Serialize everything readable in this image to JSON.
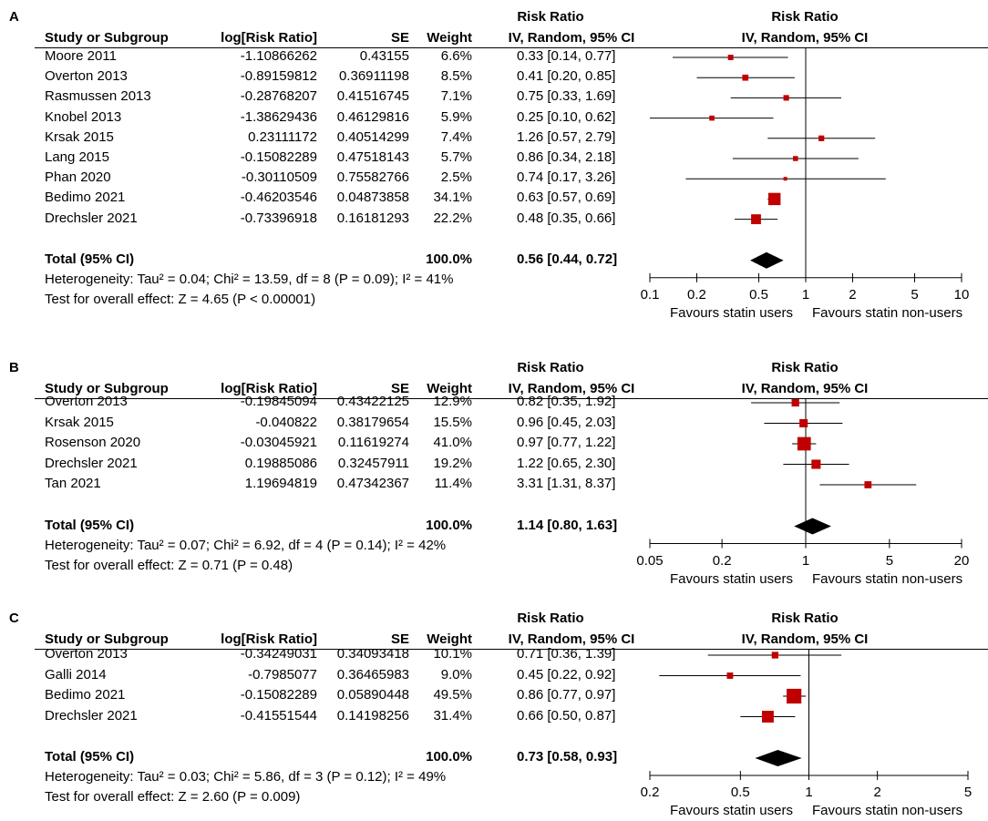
{
  "headers": {
    "study": "Study or Subgroup",
    "logrr": "log[Risk Ratio]",
    "se": "SE",
    "weight": "Weight",
    "rr_title": "Risk Ratio",
    "rr_method": "IV, Random, 95% CI",
    "plot_title": "Risk Ratio",
    "plot_method": "IV, Random, 95% CI"
  },
  "chart_data": [
    {
      "panel_label": "A",
      "type": "forest",
      "scale": "log",
      "x_ticks": [
        0.1,
        0.2,
        0.5,
        1,
        2,
        5,
        10
      ],
      "x_tick_labels": [
        "0.1",
        "0.2",
        "0.5",
        "1",
        "2",
        "5",
        "10"
      ],
      "xlim": [
        0.1,
        10
      ],
      "favours_left": "Favours statin users",
      "favours_right": "Favours statin non-users",
      "studies": [
        {
          "name": "Moore 2011",
          "logrr": "-1.10866262",
          "se": "0.43155",
          "weight": "6.6%",
          "rr_text": "0.33 [0.14, 0.77]",
          "rr": 0.33,
          "lo": 0.14,
          "hi": 0.77,
          "w": 6.6
        },
        {
          "name": "Overton 2013",
          "logrr": "-0.89159812",
          "se": "0.36911198",
          "weight": "8.5%",
          "rr_text": "0.41 [0.20, 0.85]",
          "rr": 0.41,
          "lo": 0.2,
          "hi": 0.85,
          "w": 8.5
        },
        {
          "name": "Rasmussen 2013",
          "logrr": "-0.28768207",
          "se": "0.41516745",
          "weight": "7.1%",
          "rr_text": "0.75 [0.33, 1.69]",
          "rr": 0.75,
          "lo": 0.33,
          "hi": 1.69,
          "w": 7.1
        },
        {
          "name": "Knobel 2013",
          "logrr": "-1.38629436",
          "se": "0.46129816",
          "weight": "5.9%",
          "rr_text": "0.25 [0.10, 0.62]",
          "rr": 0.25,
          "lo": 0.1,
          "hi": 0.62,
          "w": 5.9
        },
        {
          "name": "Krsak 2015",
          "logrr": "0.23111172",
          "se": "0.40514299",
          "weight": "7.4%",
          "rr_text": "1.26 [0.57, 2.79]",
          "rr": 1.26,
          "lo": 0.57,
          "hi": 2.79,
          "w": 7.4
        },
        {
          "name": "Lang 2015",
          "logrr": "-0.15082289",
          "se": "0.47518143",
          "weight": "5.7%",
          "rr_text": "0.86 [0.34, 2.18]",
          "rr": 0.86,
          "lo": 0.34,
          "hi": 2.18,
          "w": 5.7
        },
        {
          "name": "Phan 2020",
          "logrr": "-0.30110509",
          "se": "0.75582766",
          "weight": "2.5%",
          "rr_text": "0.74 [0.17, 3.26]",
          "rr": 0.74,
          "lo": 0.17,
          "hi": 3.26,
          "w": 2.5
        },
        {
          "name": "Bedimo 2021",
          "logrr": "-0.46203546",
          "se": "0.04873858",
          "weight": "34.1%",
          "rr_text": "0.63 [0.57, 0.69]",
          "rr": 0.63,
          "lo": 0.57,
          "hi": 0.69,
          "w": 34.1
        },
        {
          "name": "Drechsler 2021",
          "logrr": "-0.73396918",
          "se": "0.16181293",
          "weight": "22.2%",
          "rr_text": "0.48 [0.35, 0.66]",
          "rr": 0.48,
          "lo": 0.35,
          "hi": 0.66,
          "w": 22.2
        }
      ],
      "total": {
        "label": "Total (95% CI)",
        "weight": "100.0%",
        "rr_text": "0.56 [0.44, 0.72]",
        "rr": 0.56,
        "lo": 0.44,
        "hi": 0.72
      },
      "heterogeneity": "Heterogeneity: Tau² = 0.04; Chi² = 13.59, df = 8 (P = 0.09); I² = 41%",
      "overall_effect": "Test for overall effect: Z = 4.65 (P < 0.00001)"
    },
    {
      "panel_label": "B",
      "type": "forest",
      "scale": "log",
      "x_ticks": [
        0.05,
        0.2,
        1,
        5,
        20
      ],
      "x_tick_labels": [
        "0.05",
        "0.2",
        "1",
        "5",
        "20"
      ],
      "xlim": [
        0.05,
        20
      ],
      "favours_left": "Favours statin users",
      "favours_right": "Favours statin non-users",
      "studies": [
        {
          "name": "Overton 2013",
          "logrr": "-0.19845094",
          "se": "0.43422125",
          "weight": "12.9%",
          "rr_text": "0.82 [0.35, 1.92]",
          "rr": 0.82,
          "lo": 0.35,
          "hi": 1.92,
          "w": 12.9
        },
        {
          "name": "Krsak 2015",
          "logrr": "-0.040822",
          "se": "0.38179654",
          "weight": "15.5%",
          "rr_text": "0.96 [0.45, 2.03]",
          "rr": 0.96,
          "lo": 0.45,
          "hi": 2.03,
          "w": 15.5
        },
        {
          "name": "Rosenson 2020",
          "logrr": "-0.03045921",
          "se": "0.11619274",
          "weight": "41.0%",
          "rr_text": "0.97 [0.77, 1.22]",
          "rr": 0.97,
          "lo": 0.77,
          "hi": 1.22,
          "w": 41.0
        },
        {
          "name": "Drechsler 2021",
          "logrr": "0.19885086",
          "se": "0.32457911",
          "weight": "19.2%",
          "rr_text": "1.22 [0.65, 2.30]",
          "rr": 1.22,
          "lo": 0.65,
          "hi": 2.3,
          "w": 19.2
        },
        {
          "name": "Tan 2021",
          "logrr": "1.19694819",
          "se": "0.47342367",
          "weight": "11.4%",
          "rr_text": "3.31 [1.31, 8.37]",
          "rr": 3.31,
          "lo": 1.31,
          "hi": 8.37,
          "w": 11.4
        }
      ],
      "total": {
        "label": "Total (95% CI)",
        "weight": "100.0%",
        "rr_text": "1.14 [0.80, 1.63]",
        "rr": 1.14,
        "lo": 0.8,
        "hi": 1.63
      },
      "heterogeneity": "Heterogeneity: Tau² = 0.07; Chi² = 6.92, df = 4 (P = 0.14); I² = 42%",
      "overall_effect": "Test for overall effect: Z = 0.71 (P = 0.48)"
    },
    {
      "panel_label": "C",
      "type": "forest",
      "scale": "log",
      "x_ticks": [
        0.2,
        0.5,
        1,
        2,
        5
      ],
      "x_tick_labels": [
        "0.2",
        "0.5",
        "1",
        "2",
        "5"
      ],
      "xlim": [
        0.2,
        5
      ],
      "favours_left": "Favours statin users",
      "favours_right": "Favours statin non-users",
      "studies": [
        {
          "name": "Overton 2013",
          "logrr": "-0.34249031",
          "se": "0.34093418",
          "weight": "10.1%",
          "rr_text": "0.71 [0.36, 1.39]",
          "rr": 0.71,
          "lo": 0.36,
          "hi": 1.39,
          "w": 10.1
        },
        {
          "name": "Galli 2014",
          "logrr": "-0.7985077",
          "se": "0.36465983",
          "weight": "9.0%",
          "rr_text": "0.45 [0.22, 0.92]",
          "rr": 0.45,
          "lo": 0.22,
          "hi": 0.92,
          "w": 9.0
        },
        {
          "name": "Bedimo 2021",
          "logrr": "-0.15082289",
          "se": "0.05890448",
          "weight": "49.5%",
          "rr_text": "0.86 [0.77, 0.97]",
          "rr": 0.86,
          "lo": 0.77,
          "hi": 0.97,
          "w": 49.5
        },
        {
          "name": "Drechsler 2021",
          "logrr": "-0.41551544",
          "se": "0.14198256",
          "weight": "31.4%",
          "rr_text": "0.66 [0.50, 0.87]",
          "rr": 0.66,
          "lo": 0.5,
          "hi": 0.87,
          "w": 31.4
        }
      ],
      "total": {
        "label": "Total (95% CI)",
        "weight": "100.0%",
        "rr_text": "0.73 [0.58, 0.93]",
        "rr": 0.73,
        "lo": 0.58,
        "hi": 0.93
      },
      "heterogeneity": "Heterogeneity: Tau² = 0.03; Chi² = 5.86, df = 3 (P = 0.12); I² = 49%",
      "overall_effect": "Test for overall effect: Z = 2.60 (P = 0.009)"
    }
  ],
  "colors": {
    "marker": "#c00000",
    "line": "#000000"
  }
}
